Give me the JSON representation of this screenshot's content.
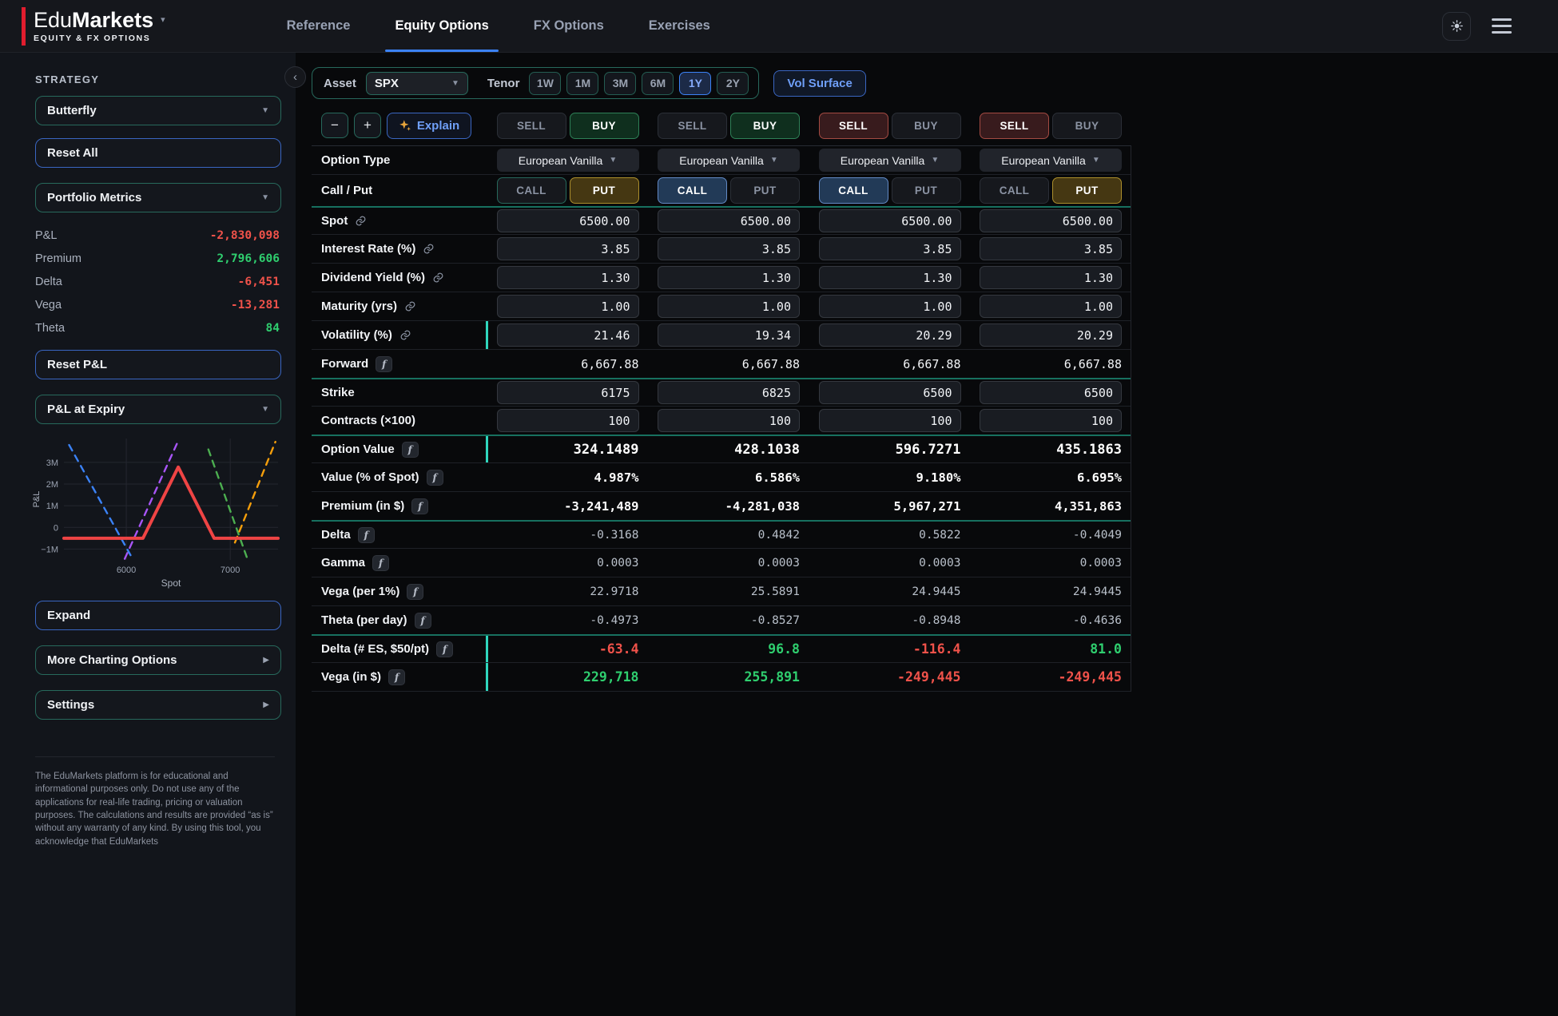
{
  "brand": {
    "prefix": "Edu",
    "suffix": "Markets",
    "caret": "▾",
    "tagline": "EQUITY & FX OPTIONS"
  },
  "header": {
    "tabs": [
      {
        "label": "Reference",
        "active": false
      },
      {
        "label": "Equity Options",
        "active": true
      },
      {
        "label": "FX Options",
        "active": false
      },
      {
        "label": "Exercises",
        "active": false
      }
    ]
  },
  "sidebar": {
    "section_title": "STRATEGY",
    "strategy_value": "Butterfly",
    "reset_all_label": "Reset All",
    "metrics_view_value": "Portfolio Metrics",
    "metrics": [
      {
        "label": "P&L",
        "value": "-2,830,098",
        "tone": "neg"
      },
      {
        "label": "Premium",
        "value": "2,796,606",
        "tone": "pos"
      },
      {
        "label": "Delta",
        "value": "-6,451",
        "tone": "neg"
      },
      {
        "label": "Vega",
        "value": "-13,281",
        "tone": "neg"
      },
      {
        "label": "Theta",
        "value": "84",
        "tone": "pos"
      }
    ],
    "reset_pnl_label": "Reset P&L",
    "chart_view_value": "P&L at Expiry",
    "expand_label": "Expand",
    "more_charting_label": "More Charting Options",
    "settings_label": "Settings",
    "disclaimer": "The EduMarkets platform is for educational and informational purposes only. Do not use any of the applications for real-life trading, pricing or valuation purposes. The calculations and results are provided “as is” without any warranty of any kind. By using this tool, you acknowledge that EduMarkets"
  },
  "chart_data": {
    "type": "line",
    "title": "P&L at Expiry",
    "xlabel": "Spot",
    "ylabel": "P&L",
    "xlim": [
      5400,
      7460
    ],
    "ylim": [
      -1500000,
      4100000
    ],
    "x_ticks": [
      6000,
      7000
    ],
    "y_ticks": [
      {
        "v": -1000000,
        "label": "−1M"
      },
      {
        "v": 0,
        "label": "0"
      },
      {
        "v": 1000000,
        "label": "1M"
      },
      {
        "v": 2000000,
        "label": "2M"
      },
      {
        "v": 3000000,
        "label": "3M"
      }
    ],
    "grid": true,
    "legend": false,
    "series": [
      {
        "name": "leg-1",
        "style": "dashed",
        "color": "#3b82f6",
        "points": [
          [
            5450,
            3800000
          ],
          [
            6060,
            -1450000
          ]
        ]
      },
      {
        "name": "leg-2",
        "style": "dashed",
        "color": "#a855f7",
        "points": [
          [
            5985,
            -1450000
          ],
          [
            6495,
            3950000
          ]
        ]
      },
      {
        "name": "leg-3",
        "style": "dashed",
        "color": "#4caf50",
        "points": [
          [
            6790,
            3600000
          ],
          [
            7165,
            -1450000
          ]
        ]
      },
      {
        "name": "leg-4",
        "style": "dashed",
        "color": "#f59e0b",
        "points": [
          [
            7045,
            -700000
          ],
          [
            7435,
            3950000
          ]
        ]
      },
      {
        "name": "strategy",
        "style": "solid",
        "color": "#ef4444",
        "points": [
          [
            5400,
            -500000
          ],
          [
            6160,
            -500000
          ],
          [
            6500,
            2780000
          ],
          [
            6845,
            -500000
          ],
          [
            7460,
            -500000
          ]
        ]
      }
    ]
  },
  "toolbar": {
    "asset_label": "Asset",
    "asset_value": "SPX",
    "tenor_label": "Tenor",
    "tenors": [
      "1W",
      "1M",
      "3M",
      "6M",
      "1Y",
      "2Y"
    ],
    "active_tenor": "1Y",
    "vol_surface_label": "Vol Surface"
  },
  "controls": {
    "minus": "−",
    "plus": "+",
    "explain_label": "Explain"
  },
  "side_labels": {
    "sell": "SELL",
    "buy": "BUY"
  },
  "cp_labels": {
    "call": "CALL",
    "put": "PUT"
  },
  "legs": [
    {
      "side": "BUY",
      "option": "PUT"
    },
    {
      "side": "BUY",
      "option": "CALL"
    },
    {
      "side": "SELL",
      "option": "CALL"
    },
    {
      "side": "SELL",
      "option": "PUT"
    }
  ],
  "table": {
    "rows": [
      {
        "label": "Option Type",
        "kind": "select",
        "select_value": "European Vanilla"
      },
      {
        "label": "Call / Put",
        "kind": "cp"
      },
      {
        "label": "Spot",
        "badge": "link",
        "kind": "input",
        "section": true,
        "values": [
          "6500.00",
          "6500.00",
          "6500.00",
          "6500.00"
        ]
      },
      {
        "label": "Interest Rate (%)",
        "badge": "link",
        "kind": "input",
        "values": [
          "3.85",
          "3.85",
          "3.85",
          "3.85"
        ]
      },
      {
        "label": "Dividend Yield (%)",
        "badge": "link",
        "kind": "input",
        "values": [
          "1.30",
          "1.30",
          "1.30",
          "1.30"
        ]
      },
      {
        "label": "Maturity (yrs)",
        "badge": "link",
        "kind": "input",
        "values": [
          "1.00",
          "1.00",
          "1.00",
          "1.00"
        ]
      },
      {
        "label": "Volatility (%)",
        "badge": "link",
        "kind": "input",
        "accent": true,
        "values": [
          "21.46",
          "19.34",
          "20.29",
          "20.29"
        ]
      },
      {
        "label": "Forward",
        "badge": "fn",
        "kind": "text",
        "text_class": "v-plain",
        "values": [
          "6,667.88",
          "6,667.88",
          "6,667.88",
          "6,667.88"
        ]
      },
      {
        "label": "Strike",
        "kind": "input",
        "section": true,
        "values": [
          "6175",
          "6825",
          "6500",
          "6500"
        ]
      },
      {
        "label": "Contracts (×100)",
        "kind": "input",
        "values": [
          "100",
          "100",
          "100",
          "100"
        ]
      },
      {
        "label": "Option Value",
        "badge": "fn",
        "kind": "text",
        "text_class": "v-big",
        "section": true,
        "accent": true,
        "values": [
          "324.1489",
          "428.1038",
          "596.7271",
          "435.1863"
        ]
      },
      {
        "label": "Value (% of Spot)",
        "badge": "fn",
        "kind": "text",
        "text_class": "v-bold",
        "values": [
          "4.987%",
          "6.586%",
          "9.180%",
          "6.695%"
        ]
      },
      {
        "label": "Premium (in $)",
        "badge": "fn",
        "kind": "text",
        "text_class": "v-bold",
        "tones": [
          "neg",
          "neg",
          "pos",
          "pos"
        ],
        "values": [
          "-3,241,489",
          "-4,281,038",
          "5,967,271",
          "4,351,863"
        ]
      },
      {
        "label": "Delta",
        "badge": "fn",
        "kind": "text",
        "text_class": "v-muted",
        "section": true,
        "values": [
          "-0.3168",
          "0.4842",
          "0.5822",
          "-0.4049"
        ]
      },
      {
        "label": "Gamma",
        "badge": "fn",
        "kind": "text",
        "text_class": "v-muted",
        "values": [
          "0.0003",
          "0.0003",
          "0.0003",
          "0.0003"
        ]
      },
      {
        "label": "Vega (per 1%)",
        "badge": "fn",
        "kind": "text",
        "text_class": "v-muted",
        "values": [
          "22.9718",
          "25.5891",
          "24.9445",
          "24.9445"
        ]
      },
      {
        "label": "Theta (per day)",
        "badge": "fn",
        "kind": "text",
        "text_class": "v-muted",
        "values": [
          "-0.4973",
          "-0.8527",
          "-0.8948",
          "-0.4636"
        ]
      },
      {
        "label": "Delta (# ES, $50/pt)",
        "badge": "fn",
        "kind": "text",
        "text_class": "v-sgn",
        "section": true,
        "accent": true,
        "tones": [
          "neg",
          "pos",
          "neg",
          "pos"
        ],
        "values": [
          "-63.4",
          "96.8",
          "-116.4",
          "81.0"
        ]
      },
      {
        "label": "Vega (in $)",
        "badge": "fn",
        "kind": "text",
        "text_class": "v-sgn",
        "accent": true,
        "tones": [
          "pos",
          "pos",
          "neg",
          "neg"
        ],
        "values": [
          "229,718",
          "255,891",
          "-249,445",
          "-249,445"
        ]
      }
    ]
  }
}
